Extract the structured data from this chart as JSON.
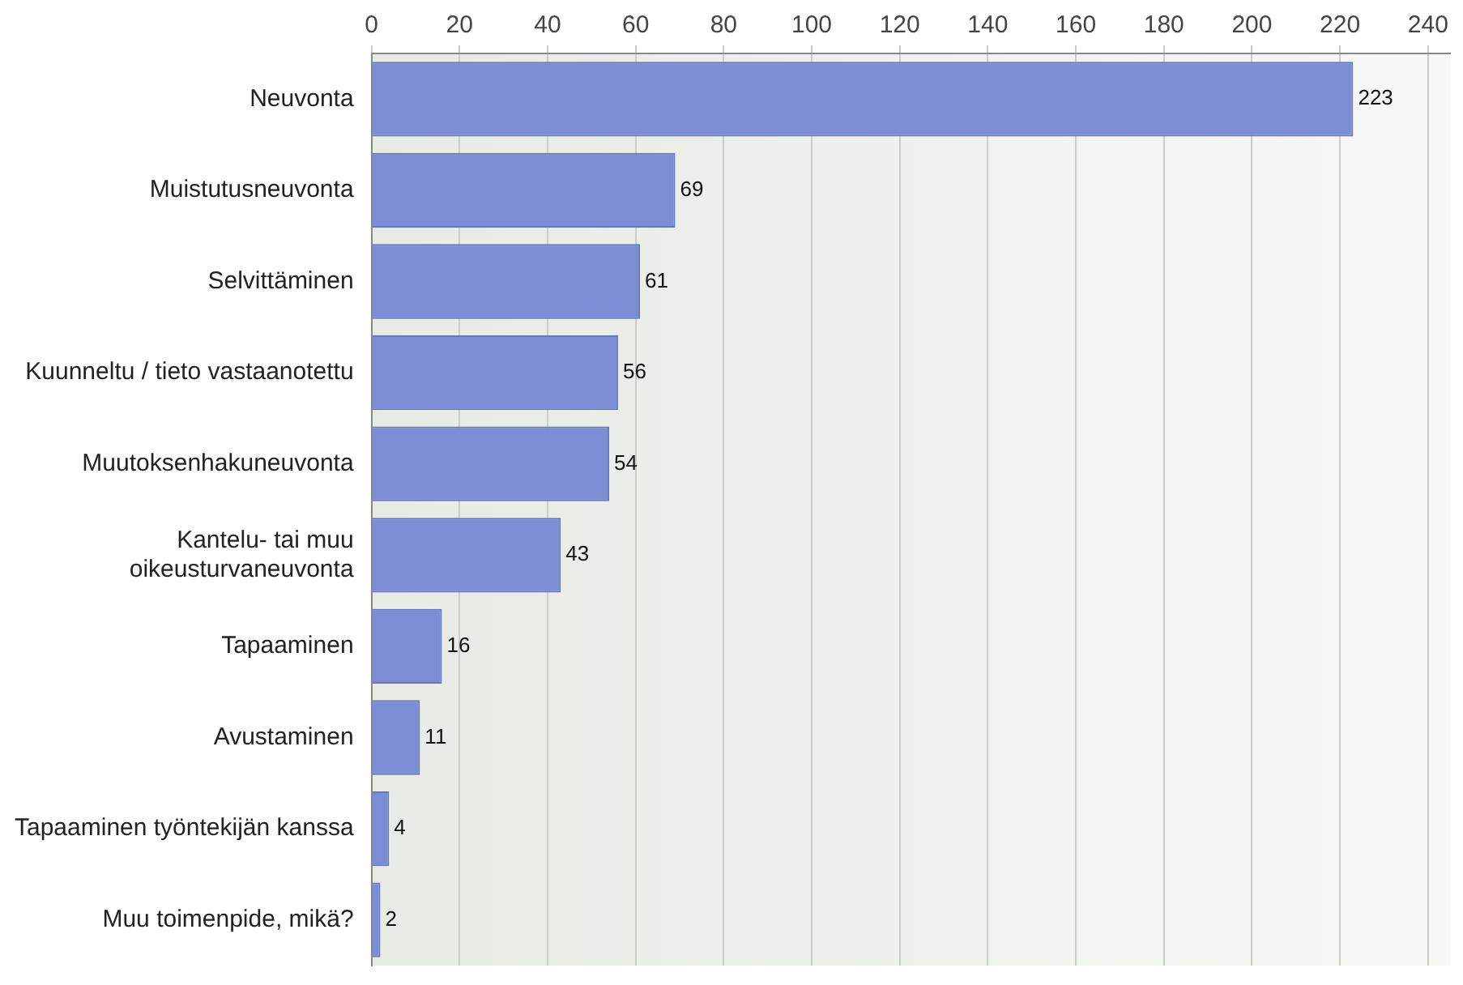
{
  "chart_data": {
    "type": "bar",
    "orientation": "horizontal",
    "categories": [
      "Neuvonta",
      "Muistutusneuvonta",
      "Selvittäminen",
      "Kuunneltu / tieto vastaanotettu",
      "Muutoksenhakuneuvonta",
      "Kantelu- tai muu oikeusturvaneuvonta",
      "Tapaaminen",
      "Avustaminen",
      "Tapaaminen työntekijän kanssa",
      "Muu toimenpide, mikä?"
    ],
    "values": [
      223,
      69,
      61,
      56,
      54,
      43,
      16,
      11,
      4,
      2
    ],
    "color": "#7b8dd4",
    "xlim": [
      0,
      245
    ],
    "xticks": [
      0,
      20,
      40,
      60,
      80,
      100,
      120,
      140,
      160,
      180,
      200,
      220,
      240
    ],
    "grid": "x",
    "data_labels": true,
    "legend": false
  }
}
